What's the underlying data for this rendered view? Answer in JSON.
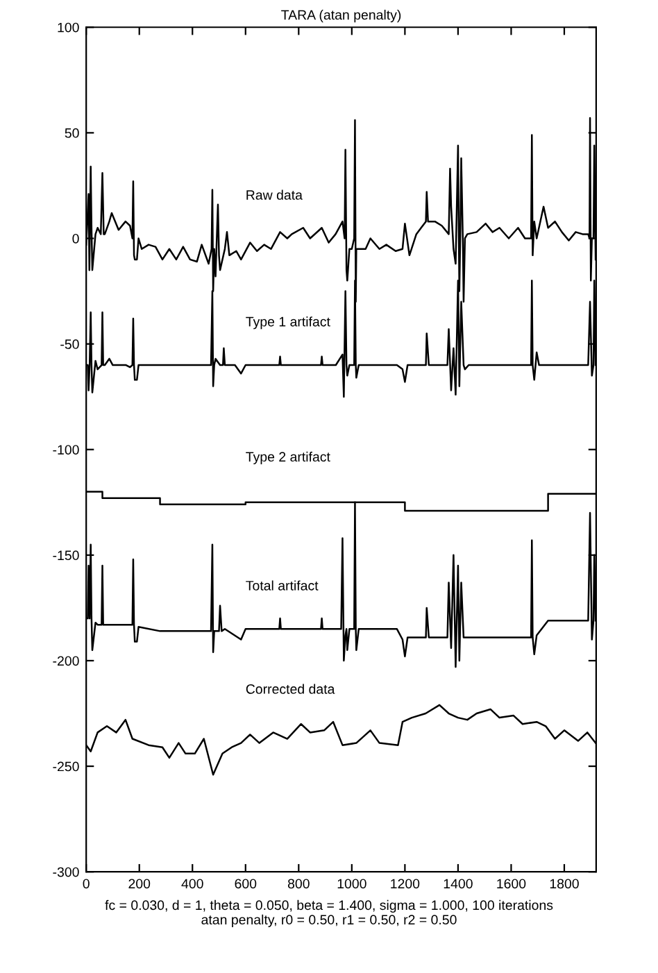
{
  "chart_data": {
    "type": "line",
    "title": "TARA (atan penalty)",
    "series": [
      {
        "name": "Raw data",
        "color": "#000000",
        "x": [
          0,
          9,
          12,
          17,
          20,
          23,
          35,
          43,
          55,
          61,
          66,
          70,
          87,
          96,
          122,
          148,
          165,
          174,
          177,
          180,
          183,
          191,
          197,
          209,
          235,
          261,
          287,
          313,
          339,
          365,
          391,
          417,
          435,
          461,
          472,
          475,
          478,
          482,
          487,
          493,
          496,
          500,
          504,
          522,
          530,
          539,
          565,
          583,
          617,
          643,
          670,
          696,
          730,
          757,
          774,
          817,
          843,
          887,
          913,
          939,
          965,
          973,
          976,
          980,
          983,
          991,
          1000,
          1009,
          1012,
          1015,
          1017,
          1026,
          1052,
          1070,
          1104,
          1130,
          1165,
          1191,
          1200,
          1217,
          1243,
          1261,
          1279,
          1282,
          1287,
          1313,
          1339,
          1365,
          1370,
          1374,
          1383,
          1391,
          1400,
          1403,
          1405,
          1409,
          1412,
          1418,
          1421,
          1426,
          1435,
          1470,
          1504,
          1530,
          1556,
          1591,
          1626,
          1652,
          1669,
          1675,
          1678,
          1681,
          1687,
          1696,
          1722,
          1739,
          1765,
          1791,
          1817,
          1843,
          1869,
          1890,
          1895,
          1897,
          1900,
          1904,
          1910,
          1913,
          1918
        ],
        "values": [
          -3,
          21,
          -15,
          34,
          5,
          -15,
          2,
          5,
          2,
          31,
          2,
          2,
          8,
          12,
          4,
          8,
          6,
          0,
          27,
          -8,
          -10,
          -10,
          0,
          -5,
          -3,
          -4,
          -10,
          -5,
          -10,
          -4,
          -10,
          -11,
          -3,
          -12,
          -5,
          23,
          -25,
          -5,
          -18,
          5,
          16,
          -8,
          -15,
          -5,
          3,
          -8,
          -6,
          -10,
          -2,
          -6,
          -3,
          -5,
          3,
          0,
          2,
          5,
          0,
          5,
          -2,
          2,
          8,
          0,
          42,
          -15,
          -20,
          -5,
          -5,
          0,
          56,
          -30,
          -5,
          -5,
          -5,
          0,
          -5,
          -3,
          -6,
          -5,
          7,
          -8,
          2,
          5,
          8,
          22,
          8,
          8,
          6,
          2,
          33,
          15,
          -5,
          -12,
          44,
          0,
          -25,
          5,
          38,
          0,
          -30,
          0,
          2,
          3,
          7,
          3,
          5,
          0,
          5,
          0,
          0,
          0,
          49,
          -8,
          8,
          0,
          15,
          5,
          8,
          3,
          -1,
          3,
          2,
          2,
          0,
          57,
          -20,
          0,
          0,
          44,
          -10
        ]
      },
      {
        "name": "Type 1 artifact",
        "color": "#000000",
        "x": [
          0,
          6,
          9,
          13,
          17,
          20,
          23,
          35,
          43,
          58,
          61,
          64,
          70,
          87,
          100,
          150,
          165,
          174,
          177,
          180,
          183,
          191,
          197,
          260,
          470,
          475,
          478,
          482,
          487,
          504,
          515,
          518,
          522,
          560,
          583,
          600,
          727,
          730,
          733,
          884,
          887,
          890,
          940,
          965,
          970,
          976,
          980,
          983,
          991,
          1000,
          1009,
          1012,
          1015,
          1017,
          1026,
          1170,
          1191,
          1200,
          1210,
          1260,
          1279,
          1282,
          1290,
          1360,
          1365,
          1374,
          1383,
          1391,
          1400,
          1405,
          1412,
          1421,
          1426,
          1440,
          1669,
          1675,
          1678,
          1681,
          1687,
          1696,
          1705,
          1890,
          1897,
          1904,
          1910,
          1913,
          1918
        ],
        "values": [
          -60,
          -60,
          -72,
          -60,
          -35,
          -60,
          -73,
          -58,
          -62,
          -60,
          -35,
          -60,
          -60,
          -57,
          -60,
          -60,
          -61,
          -60,
          -38,
          -60,
          -67,
          -67,
          -60,
          -60,
          -60,
          -25,
          -70,
          -60,
          -57,
          -60,
          -60,
          -52,
          -60,
          -60,
          -64,
          -60,
          -60,
          -56,
          -60,
          -60,
          -56,
          -60,
          -60,
          -55,
          -75,
          -25,
          -60,
          -65,
          -60,
          -60,
          -60,
          -20,
          -60,
          -66,
          -60,
          -60,
          -62,
          -68,
          -60,
          -60,
          -60,
          -45,
          -60,
          -60,
          -43,
          -72,
          -52,
          -74,
          -20,
          -70,
          -30,
          -60,
          -62,
          -60,
          -60,
          -60,
          -20,
          -60,
          -67,
          -54,
          -60,
          -60,
          -30,
          -65,
          -60,
          -20,
          -60
        ]
      },
      {
        "name": "Type 2 artifact",
        "color": "#000000",
        "x": [
          0,
          61,
          61,
          278,
          278,
          600,
          600,
          1200,
          1200,
          1739,
          1739,
          1918
        ],
        "values": [
          -120,
          -120,
          -123,
          -123,
          -126,
          -126,
          -125,
          -125,
          -129,
          -129,
          -121,
          -121
        ]
      },
      {
        "name": "Total artifact",
        "color": "#000000",
        "x": [
          0,
          6,
          9,
          13,
          17,
          20,
          23,
          35,
          43,
          58,
          61,
          64,
          70,
          174,
          177,
          180,
          183,
          191,
          197,
          278,
          470,
          475,
          478,
          482,
          487,
          500,
          504,
          510,
          522,
          583,
          600,
          727,
          730,
          733,
          884,
          887,
          890,
          960,
          965,
          970,
          976,
          980,
          983,
          991,
          1000,
          1009,
          1012,
          1015,
          1017,
          1026,
          1170,
          1191,
          1200,
          1210,
          1260,
          1279,
          1282,
          1290,
          1360,
          1365,
          1374,
          1383,
          1391,
          1400,
          1405,
          1412,
          1421,
          1440,
          1669,
          1675,
          1678,
          1681,
          1687,
          1696,
          1739,
          1890,
          1897,
          1904,
          1910,
          1913,
          1918
        ],
        "values": [
          -180,
          -180,
          -155,
          -180,
          -145,
          -180,
          -195,
          -182,
          -183,
          -183,
          -155,
          -183,
          -183,
          -183,
          -152,
          -183,
          -191,
          -191,
          -184,
          -186,
          -186,
          -145,
          -196,
          -186,
          -186,
          -186,
          -174,
          -186,
          -185,
          -190,
          -185,
          -185,
          -180,
          -185,
          -185,
          -180,
          -185,
          -185,
          -142,
          -200,
          -188,
          -185,
          -195,
          -185,
          -185,
          -185,
          -125,
          -185,
          -195,
          -185,
          -185,
          -190,
          -198,
          -189,
          -189,
          -189,
          -175,
          -189,
          -189,
          -163,
          -194,
          -150,
          -203,
          -155,
          -200,
          -163,
          -189,
          -189,
          -189,
          -189,
          -143,
          -189,
          -197,
          -188,
          -181,
          -181,
          -130,
          -190,
          -181,
          -150,
          -181
        ]
      },
      {
        "name": "Corrected data",
        "color": "#000000",
        "x": [
          0,
          17,
          43,
          78,
          113,
          148,
          174,
          235,
          287,
          313,
          348,
          374,
          409,
          443,
          478,
          513,
          548,
          583,
          617,
          652,
          704,
          757,
          809,
          843,
          896,
          930,
          965,
          1017,
          1070,
          1104,
          1174,
          1191,
          1226,
          1278,
          1330,
          1365,
          1400,
          1435,
          1470,
          1522,
          1556,
          1609,
          1643,
          1696,
          1730,
          1765,
          1800,
          1852,
          1887,
          1918
        ],
        "values": [
          -240,
          -243,
          -234,
          -231,
          -234,
          -228,
          -237,
          -240,
          -241,
          -246,
          -239,
          -244,
          -244,
          -237,
          -254,
          -244,
          -241,
          -239,
          -235,
          -239,
          -234,
          -237,
          -230,
          -234,
          -233,
          -229,
          -240,
          -239,
          -233,
          -239,
          -240,
          -229,
          -227,
          -225,
          -221,
          -225,
          -227,
          -228,
          -225,
          -223,
          -227,
          -226,
          -230,
          -229,
          -231,
          -237,
          -233,
          -238,
          -234,
          -239
        ]
      }
    ],
    "xlim": [
      0,
      1920
    ],
    "xticks": [
      0,
      200,
      400,
      600,
      800,
      1000,
      1200,
      1400,
      1600,
      1800
    ],
    "ylim": [
      -300,
      100
    ],
    "yticks": [
      -300,
      -250,
      -200,
      -150,
      -100,
      -50,
      0,
      50,
      100
    ],
    "grid": false,
    "legend": false,
    "marker": "none",
    "line_style": "solid",
    "annotations": [
      "fc = 0.030, d = 1, theta = 0.050, beta = 1.400, sigma = 1.000, 100 iterations\natan penalty, r0 = 0.50, r1 = 0.50, r2 = 0.50"
    ]
  }
}
